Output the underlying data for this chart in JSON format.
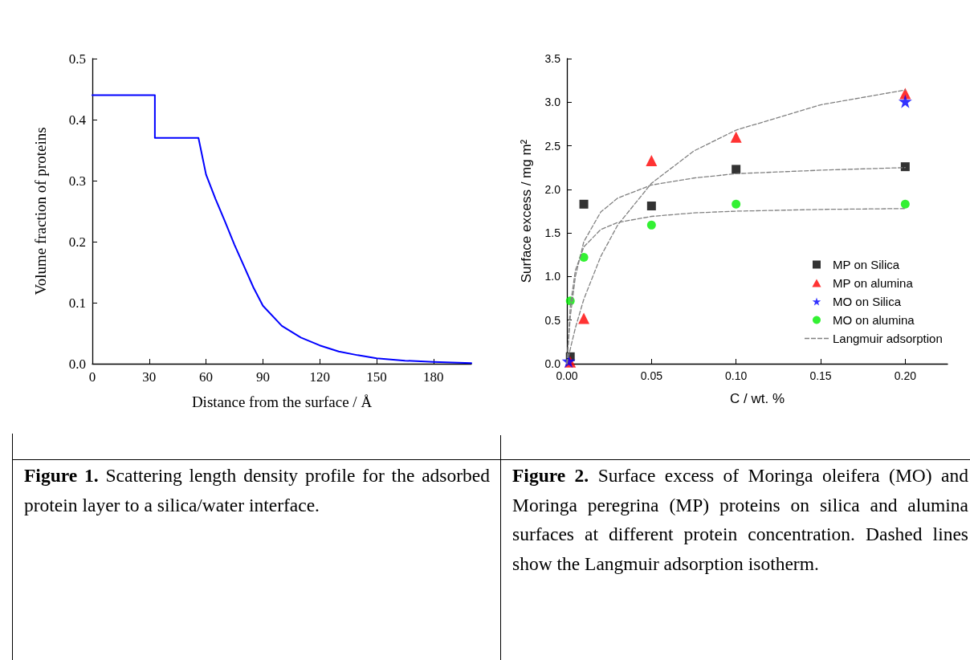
{
  "chart_data": [
    {
      "type": "line",
      "xlabel": "Distance from the surface / Å",
      "ylabel": "Volume fraction of proteins",
      "color": "#0000ff",
      "marker": "none",
      "line_style": "solid",
      "grid": false,
      "legend": false,
      "x": [
        0,
        33,
        33,
        56,
        60,
        65,
        70,
        75,
        80,
        85,
        90,
        100,
        110,
        120,
        130,
        140,
        150,
        165,
        180,
        200
      ],
      "values": [
        0.44,
        0.44,
        0.37,
        0.37,
        0.31,
        0.27,
        0.233,
        0.195,
        0.16,
        0.125,
        0.095,
        0.062,
        0.043,
        0.03,
        0.02,
        0.014,
        0.009,
        0.005,
        0.003,
        0.001
      ],
      "xlim": [
        0,
        200
      ],
      "xticks": [
        0,
        30,
        60,
        90,
        120,
        150,
        180
      ],
      "ylim": [
        0,
        0.5
      ],
      "yticks": [
        {
          "value": 0,
          "label": "0.0"
        },
        0.1,
        0.2,
        0.3,
        0.4,
        0.5
      ],
      "annotations": [
        "Figure 1. Scattering length density profile for the adsorbed protein layer to a silica/water interface."
      ]
    },
    {
      "type": "scatter",
      "xlabel": "C / wt. %",
      "ylabel": "Surface excess / mg m²",
      "grid": false,
      "legend": "bottom right",
      "xlim": [
        0,
        0.225
      ],
      "xticks": [
        {
          "value": 0,
          "label": "0.00"
        },
        {
          "value": 0.05,
          "label": "0.05"
        },
        {
          "value": 0.1,
          "label": "0.10"
        },
        {
          "value": 0.15,
          "label": "0.15"
        },
        {
          "value": 0.2,
          "label": "0.20"
        }
      ],
      "ylim": [
        0,
        3.5
      ],
      "yticks": [
        {
          "value": 0,
          "label": "0.0"
        },
        0.5,
        {
          "value": 1,
          "label": "1.0"
        },
        1.5,
        {
          "value": 2,
          "label": "2.0"
        },
        2.5,
        {
          "value": 3,
          "label": "3.0"
        },
        3.5
      ],
      "series": [
        {
          "name": "MP on Silica",
          "marker": "square",
          "color": "#000000",
          "x": [
            0.002,
            0.01,
            0.05,
            0.1,
            0.2
          ],
          "values": [
            0.08,
            1.83,
            1.81,
            2.23,
            2.26
          ]
        },
        {
          "name": "MP on alumina",
          "marker": "triangle",
          "color": "#ff0000",
          "x": [
            0.002,
            0.01,
            0.05,
            0.1,
            0.2
          ],
          "values": [
            0.02,
            0.52,
            2.33,
            2.6,
            3.1
          ]
        },
        {
          "name": "MO on Silica",
          "marker": "star",
          "color": "#0000ff",
          "x": [
            0.001,
            0.2
          ],
          "values": [
            0.03,
            3.01
          ]
        },
        {
          "name": "MO on alumina",
          "marker": "circle",
          "color": "#00ee00",
          "x": [
            0.002,
            0.01,
            0.05,
            0.1,
            0.2
          ],
          "values": [
            0.72,
            1.22,
            1.59,
            1.83,
            1.83
          ]
        },
        {
          "name": "Langmuir adsorption",
          "type": "line",
          "marker": "none",
          "line_style": "dashed",
          "color": "#808080",
          "x": [
            0,
            0.002,
            0.005,
            0.01,
            0.02,
            0.03,
            0.05,
            0.075,
            0.1,
            0.15,
            0.2
          ],
          "values": [
            0,
            0.17,
            0.41,
            0.74,
            1.23,
            1.59,
            2.07,
            2.44,
            2.68,
            2.97,
            3.14
          ]
        },
        {
          "type": "line",
          "marker": "none",
          "line_style": "dashed",
          "color": "#808080",
          "x": [
            0,
            0.002,
            0.005,
            0.01,
            0.02,
            0.03,
            0.05,
            0.075,
            0.1,
            0.15,
            0.2
          ],
          "values": [
            0,
            0.54,
            1.0,
            1.4,
            1.74,
            1.9,
            2.05,
            2.13,
            2.18,
            2.22,
            2.25
          ]
        },
        {
          "type": "line",
          "marker": "none",
          "line_style": "dashed",
          "color": "#808080",
          "x": [
            0,
            0.002,
            0.005,
            0.01,
            0.02,
            0.03,
            0.05,
            0.075,
            0.1,
            0.15,
            0.2
          ],
          "values": [
            0,
            0.66,
            1.07,
            1.34,
            1.54,
            1.62,
            1.69,
            1.73,
            1.75,
            1.77,
            1.78
          ]
        }
      ],
      "annotations": [
        "Figure 2. Surface excess of Moringa oleifera (MO) and Moringa peregrina (MP) proteins on silica and alumina surfaces at different protein concentration.  Dashed lines show the Langmuir adsorption isotherm."
      ]
    }
  ]
}
